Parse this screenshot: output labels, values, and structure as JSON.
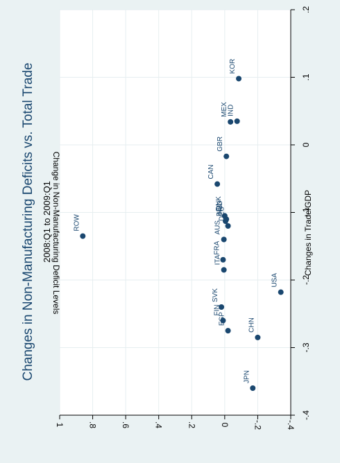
{
  "chart_data": {
    "type": "scatter",
    "title": "Changes in Non-Manufacturing Deficits vs. Total Trade",
    "subtitle": "2008:Q1 to 2009:Q1",
    "xlabel": "Changes in Trade/GDP",
    "ylabel": "Change in Non-Manufacturing Deficit Levels",
    "xlim": [
      -0.4,
      0.2
    ],
    "ylim": [
      -0.4,
      1.0
    ],
    "x_ticks": [
      -0.4,
      -0.3,
      -0.2,
      -0.1,
      0,
      0.1,
      0.2
    ],
    "x_tick_labels": [
      "-.4",
      "-.3",
      "-.2",
      "-.1",
      "0",
      ".1",
      ".2"
    ],
    "y_ticks": [
      -0.4,
      -0.2,
      0,
      0.2,
      0.4,
      0.6,
      0.8,
      1.0
    ],
    "y_tick_labels": [
      "-.4",
      "-.2",
      "0",
      ".2",
      ".4",
      ".6",
      ".8",
      "1"
    ],
    "grid": true,
    "marker_color": "#1a476f",
    "points": [
      {
        "label": "ROW",
        "x": -0.135,
        "y": 0.86
      },
      {
        "label": "CAN",
        "x": -0.058,
        "y": 0.045
      },
      {
        "label": "GBR",
        "x": -0.017,
        "y": -0.01
      },
      {
        "label": "MEX",
        "x": 0.034,
        "y": -0.035
      },
      {
        "label": "IND",
        "x": 0.035,
        "y": -0.075
      },
      {
        "label": "KOR",
        "x": 0.098,
        "y": -0.085
      },
      {
        "label": "DNK",
        "x": -0.105,
        "y": 0.0
      },
      {
        "label": "NLD",
        "x": -0.11,
        "y": -0.01
      },
      {
        "label": "BEL",
        "x": -0.113,
        "y": -0.005
      },
      {
        "label": "DEU",
        "x": -0.12,
        "y": -0.02
      },
      {
        "label": "AUS",
        "x": -0.14,
        "y": 0.005
      },
      {
        "label": "FRA",
        "x": -0.17,
        "y": 0.01
      },
      {
        "label": "ITA",
        "x": -0.185,
        "y": 0.005
      },
      {
        "label": "SVK",
        "x": -0.24,
        "y": 0.02
      },
      {
        "label": "ESP",
        "x": -0.275,
        "y": -0.02
      },
      {
        "label": "FIN",
        "x": -0.26,
        "y": 0.01
      },
      {
        "label": "CHN",
        "x": -0.285,
        "y": -0.2
      },
      {
        "label": "JPN",
        "x": -0.36,
        "y": -0.17
      },
      {
        "label": "USA",
        "x": -0.218,
        "y": -0.34
      }
    ]
  }
}
